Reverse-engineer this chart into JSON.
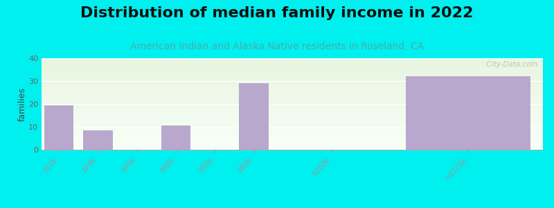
{
  "title": "Distribution of median family income in 2022",
  "subtitle": "American Indian and Alaska Native residents in Roseland, CA",
  "ylabel": "families",
  "categories": [
    "$10k",
    "$20k",
    "$30k",
    "$40k",
    "$50k",
    "$60k",
    "$100k",
    ">$125k"
  ],
  "values": [
    19.5,
    8.5,
    0,
    10.5,
    0,
    29.0,
    0,
    32.0
  ],
  "bar_color": "#b8a8ce",
  "bg_color": "#00efef",
  "ylim": [
    0,
    40
  ],
  "yticks": [
    0,
    10,
    20,
    30,
    40
  ],
  "title_fontsize": 16,
  "subtitle_fontsize": 10,
  "subtitle_color": "#4aadaa",
  "watermark": "  City-Data.com",
  "bar_positions": [
    0,
    1,
    2,
    3,
    4,
    5,
    7,
    10.5
  ],
  "bar_widths": [
    0.75,
    0.75,
    0.75,
    0.75,
    0.75,
    0.75,
    0.75,
    3.2
  ],
  "gradient_top": "#e8f5e0",
  "gradient_bottom": "#f8fff8"
}
